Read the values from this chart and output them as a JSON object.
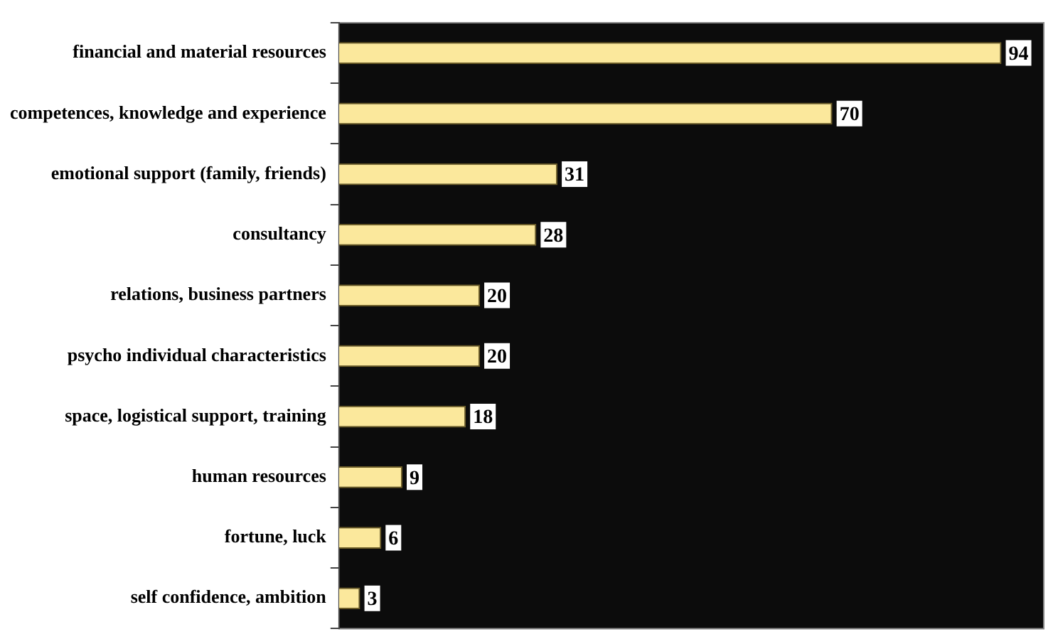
{
  "chart_data": {
    "type": "bar",
    "orientation": "horizontal",
    "categories": [
      "financial and material resources",
      "competences, knowledge and experience",
      "emotional support (family, friends)",
      "consultancy",
      "relations, business partners",
      "psycho individual characteristics",
      "space, logistical support, training",
      "human resources",
      "fortune, luck",
      "self confidence, ambition"
    ],
    "values": [
      94,
      70,
      31,
      28,
      20,
      20,
      18,
      9,
      6,
      3
    ],
    "color": "#fbe89c",
    "xlim": [
      0,
      100
    ],
    "data_labels": true,
    "grid": false,
    "legend": false,
    "tick_labels": "y"
  }
}
